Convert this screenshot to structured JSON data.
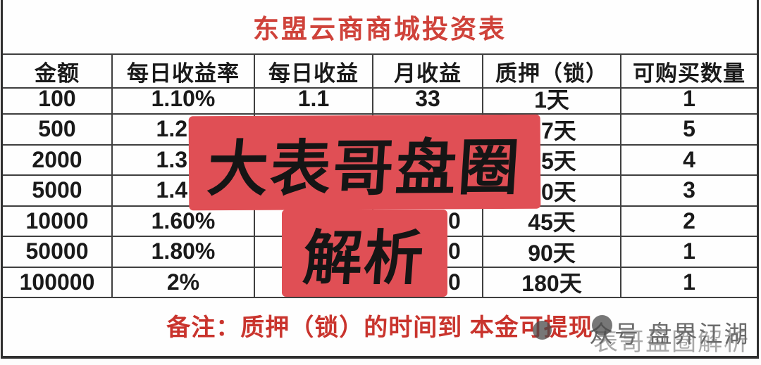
{
  "title": "东盟云商商城投资表",
  "table": {
    "headers": [
      "金额",
      "每日收益率",
      "每日收益",
      "月收益",
      "质押（锁）",
      "可购买数量"
    ],
    "rows": [
      [
        "100",
        "1.10%",
        "1.1",
        "33",
        "1天",
        "1"
      ],
      [
        "500",
        "1.2",
        "",
        "",
        "7天",
        "5"
      ],
      [
        "2000",
        "1.3",
        "",
        "",
        "5天",
        "4"
      ],
      [
        "5000",
        "1.4",
        "",
        "",
        "0天",
        "3"
      ],
      [
        "10000",
        "1.60%",
        "",
        "0",
        "45天",
        "2"
      ],
      [
        "50000",
        "1.80%",
        "",
        "0",
        "90天",
        "1"
      ],
      [
        "100000",
        "2%",
        "",
        "0",
        "180天",
        "1"
      ]
    ]
  },
  "note": "备注：质押（锁）的时间到 本金可提现",
  "overlay": {
    "line1": "大表哥盘圈",
    "line2": "解析"
  },
  "watermark": {
    "line1": "众号  盘界江湖",
    "line2": "表哥盘圈解析"
  },
  "colors": {
    "title_red": "#cf423a",
    "note_red": "#c9342d",
    "overlay_bg": "#e04f55",
    "overlay_text": "#151515",
    "grid_line": "#3f3f3f",
    "cell_text": "#1a1a1a",
    "watermark_dark": "#6b6b6b",
    "watermark_light": "#a9a9a9"
  }
}
